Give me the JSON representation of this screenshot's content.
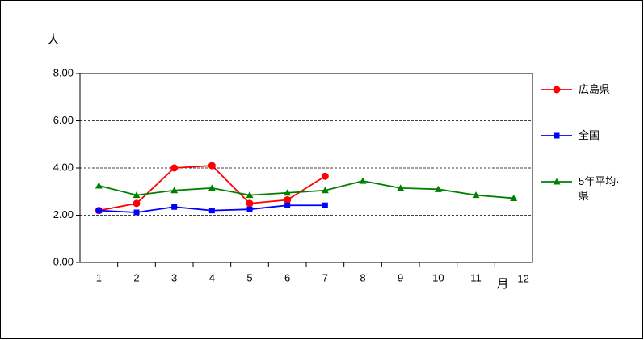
{
  "chart_data": {
    "type": "line",
    "y_label": "人",
    "x_label": "月",
    "categories": [
      "1",
      "2",
      "3",
      "4",
      "5",
      "6",
      "7",
      "8",
      "9",
      "10",
      "11",
      "12"
    ],
    "series": [
      {
        "name": "広島県",
        "color": "#ff0000",
        "marker": "circle",
        "values": [
          2.2,
          2.5,
          4.0,
          4.1,
          2.5,
          2.65,
          3.65,
          null,
          null,
          null,
          null,
          null
        ]
      },
      {
        "name": "全国",
        "color": "#0000ff",
        "marker": "square",
        "values": [
          2.2,
          2.12,
          2.35,
          2.2,
          2.25,
          2.42,
          2.42,
          null,
          null,
          null,
          null,
          null
        ]
      },
      {
        "name": "5年平均·県",
        "color": "#008000",
        "marker": "triangle",
        "values": [
          3.25,
          2.85,
          3.05,
          3.15,
          2.85,
          2.95,
          3.05,
          3.45,
          3.15,
          3.1,
          2.85,
          2.72
        ]
      }
    ],
    "ylim": [
      0,
      8
    ],
    "yticks": [
      {
        "value": 0,
        "label": "0.00"
      },
      {
        "value": 2,
        "label": "2.00"
      },
      {
        "value": 4,
        "label": "4.00"
      },
      {
        "value": 6,
        "label": "6.00"
      },
      {
        "value": 8,
        "label": "8.00"
      }
    ],
    "grid": true,
    "legend": "right"
  }
}
